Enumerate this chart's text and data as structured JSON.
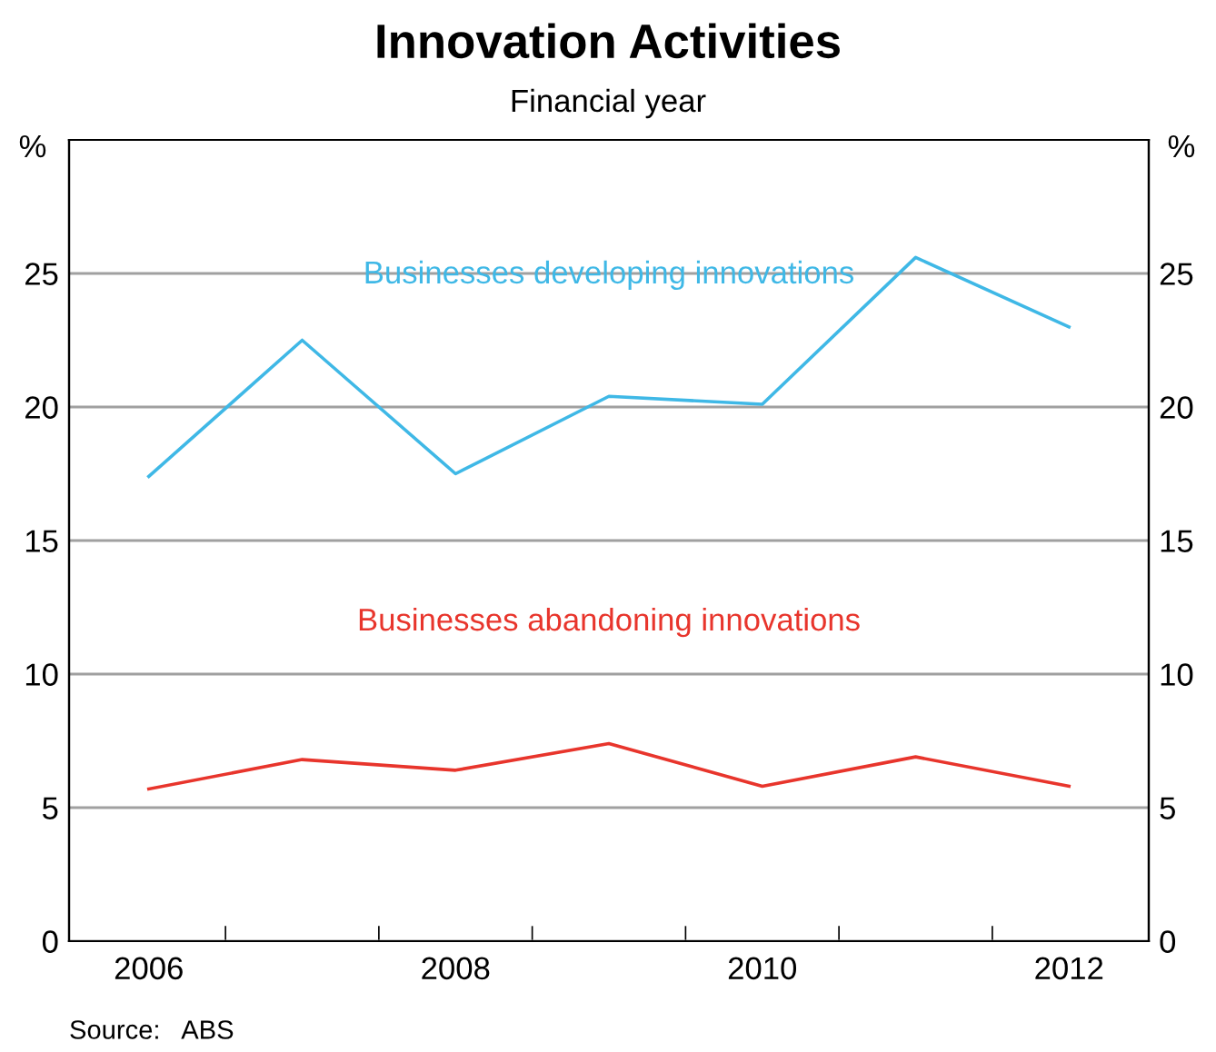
{
  "chart_data": {
    "type": "line",
    "title": "Innovation Activities",
    "subtitle": "Financial year",
    "categories": [
      "2006",
      null,
      "2008",
      null,
      "2010",
      null,
      "2012"
    ],
    "series": [
      {
        "name": "Businesses developing innovations",
        "color": "#3fb8e6",
        "values": [
          17.4,
          22.5,
          17.5,
          20.4,
          20.1,
          25.6,
          23.0
        ]
      },
      {
        "name": "Businesses abandoning innovations",
        "color": "#e8352c",
        "values": [
          5.7,
          6.8,
          6.4,
          7.4,
          5.8,
          6.9,
          5.8
        ]
      }
    ],
    "ylabel": "%",
    "y2label": "%",
    "ylim": [
      0,
      30
    ],
    "yticks": [
      0,
      5,
      10,
      15,
      20,
      25
    ],
    "y2lim": [
      0,
      30
    ],
    "y2ticks": [
      0,
      5,
      10,
      15,
      20,
      25
    ],
    "grid": "y",
    "legend": false,
    "marker": "none",
    "line_style": "solid",
    "annotations": [
      "Source:   ABS"
    ]
  }
}
